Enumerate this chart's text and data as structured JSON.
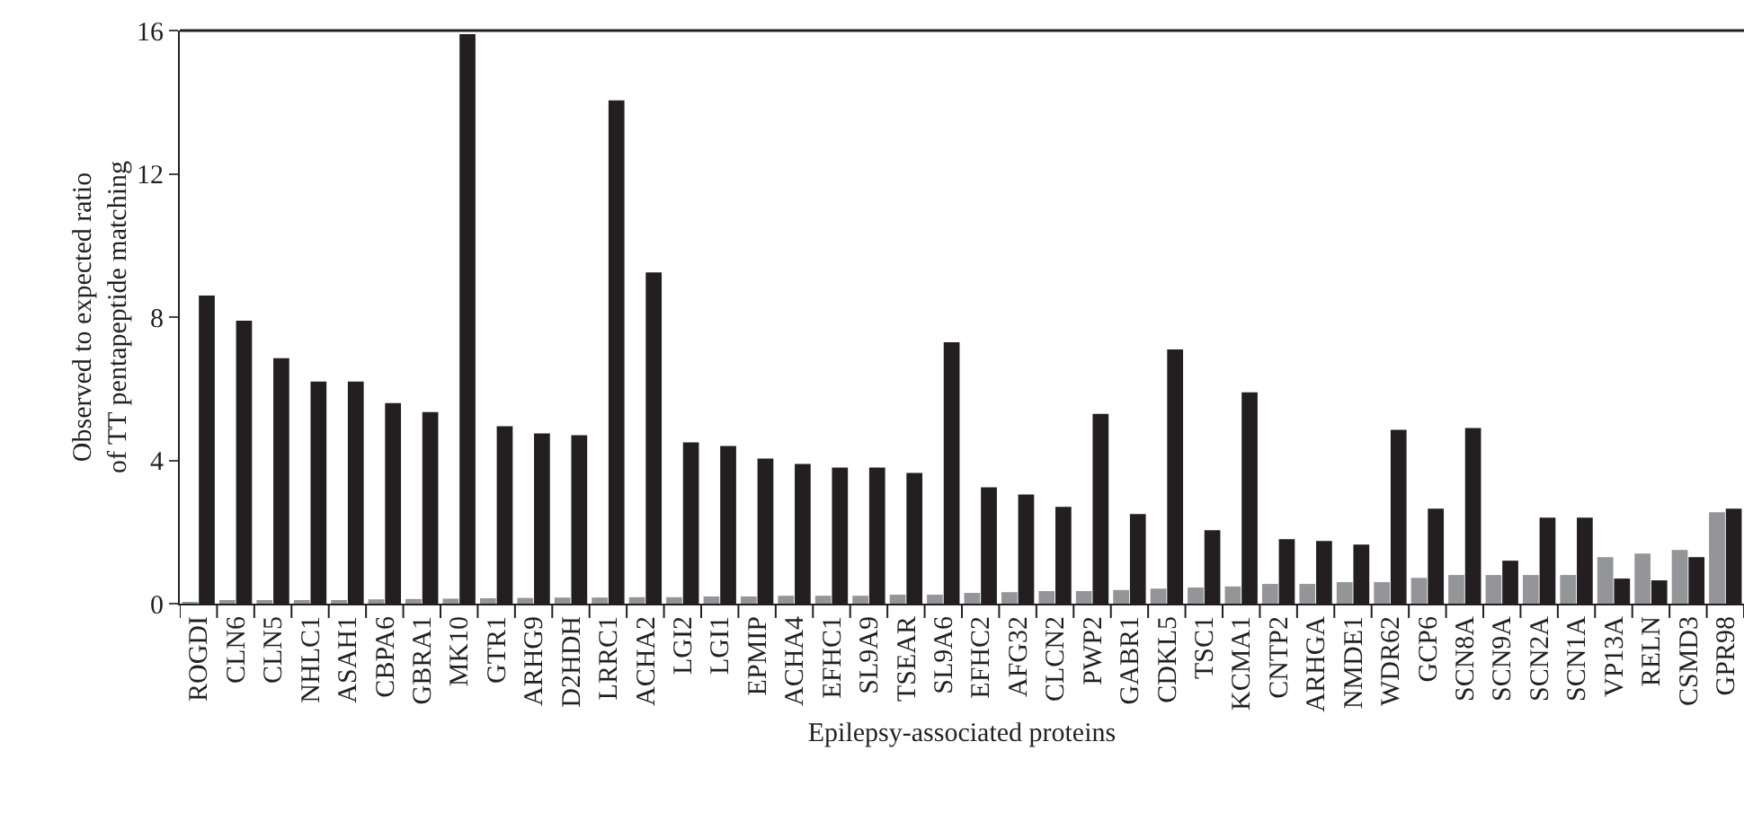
{
  "chart_data": {
    "type": "bar",
    "xlabel": "Epilepsy-associated proteins",
    "ylabel": "Observed to expected ratio\nof TT pentapeptide matching",
    "categories": [
      "ROGDI",
      "CLN6",
      "CLN5",
      "NHLC1",
      "ASAH1",
      "CBPA6",
      "GBRA1",
      "MK10",
      "GTR1",
      "ARHG9",
      "D2HDH",
      "LRRC1",
      "ACHA2",
      "LGI2",
      "LGI1",
      "EPMIP",
      "ACHA4",
      "EFHC1",
      "SL9A9",
      "TSEAR",
      "SL9A6",
      "EFHC2",
      "AFG32",
      "CLCN2",
      "PWP2",
      "GABR1",
      "CDKL5",
      "TSC1",
      "KCMA1",
      "CNTP2",
      "ARHGA",
      "NMDE1",
      "WDR62",
      "GCP6",
      "SCN8A",
      "SCN9A",
      "SCN2A",
      "SCN1A",
      "VP13A",
      "RELN",
      "CSMD3",
      "GPR98"
    ],
    "series": [
      {
        "color": "#939598",
        "values": [
          0.05,
          0.07,
          0.09,
          0.1,
          0.1,
          0.12,
          0.13,
          0.14,
          0.15,
          0.16,
          0.17,
          0.17,
          0.18,
          0.18,
          0.2,
          0.2,
          0.22,
          0.22,
          0.22,
          0.25,
          0.25,
          0.3,
          0.32,
          0.35,
          0.35,
          0.38,
          0.42,
          0.45,
          0.48,
          0.55,
          0.55,
          0.6,
          0.6,
          0.72,
          0.8,
          0.8,
          0.8,
          0.8,
          1.3,
          1.4,
          1.5,
          2.55
        ]
      },
      {
        "color": "#231f20",
        "values": [
          8.6,
          7.9,
          6.85,
          6.2,
          6.2,
          5.6,
          5.35,
          15.9,
          4.95,
          4.75,
          4.7,
          14.05,
          9.25,
          4.5,
          4.4,
          4.05,
          3.9,
          3.8,
          3.8,
          3.65,
          7.3,
          3.25,
          3.05,
          2.7,
          5.3,
          2.5,
          7.1,
          2.05,
          5.9,
          1.8,
          1.75,
          1.65,
          4.85,
          2.65,
          4.9,
          1.2,
          2.4,
          2.4,
          0.7,
          0.65,
          1.3,
          2.65
        ]
      }
    ],
    "ylim": [
      0,
      16
    ],
    "yticks": [
      0,
      4,
      8,
      12,
      16
    ],
    "grid": false
  }
}
